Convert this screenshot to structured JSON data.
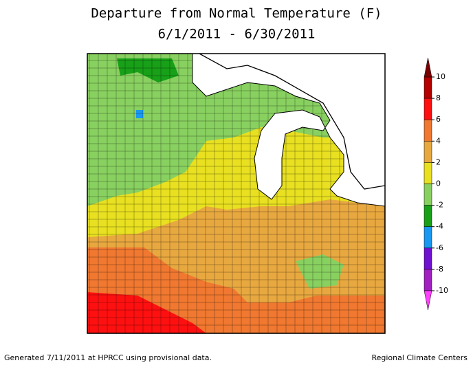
{
  "title": [
    "Departure from Normal Temperature (F)",
    "6/1/2011 - 6/30/2011"
  ],
  "legend": {
    "ticks": [
      10,
      8,
      6,
      4,
      2,
      0,
      -2,
      -4,
      -6,
      -8,
      -10
    ],
    "colors": [
      "#b40000",
      "#ff1010",
      "#f07830",
      "#e8a840",
      "#e8e020",
      "#88d060",
      "#18a018",
      "#1898f0",
      "#7010d0",
      "#a020c0"
    ],
    "over_color": "#7a0000",
    "under_color": "#ff40ff"
  },
  "footer": {
    "left": "Generated 7/11/2011 at HPRCC using provisional data.",
    "right": "Regional Climate Centers"
  }
}
